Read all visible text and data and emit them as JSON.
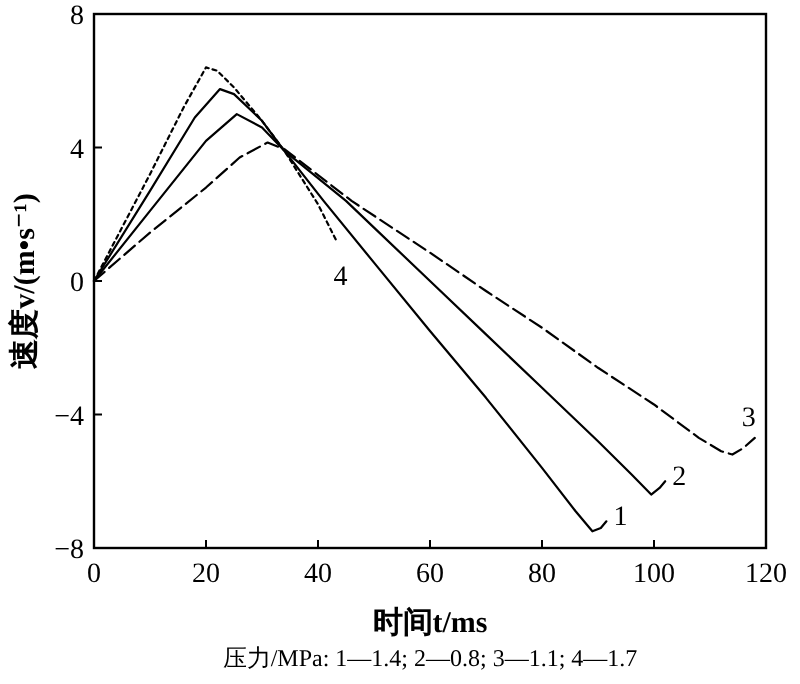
{
  "chart_data": {
    "type": "line",
    "xlabel": "时间t/ms",
    "ylabel": "速度v/(m•s⁻¹)",
    "xlim": [
      0,
      120
    ],
    "xticks": [
      0,
      20,
      40,
      60,
      80,
      100,
      120
    ],
    "ylim": [
      -8,
      8
    ],
    "yticks": [
      -8,
      -4,
      0,
      4,
      8
    ],
    "grid": false,
    "legend": false,
    "series": [
      {
        "name": "1",
        "color": "#000000",
        "line_style": "solid",
        "x": [
          0,
          10,
          18,
          22.5,
          25,
          30,
          34,
          41,
          50,
          60,
          70,
          80,
          86,
          89,
          90.5,
          91.5
        ],
        "values": [
          0,
          2.7,
          4.9,
          5.75,
          5.6,
          4.8,
          3.9,
          2.4,
          0.55,
          -1.5,
          -3.5,
          -5.6,
          -6.9,
          -7.5,
          -7.4,
          -7.2
        ]
      },
      {
        "name": "2",
        "color": "#000000",
        "line_style": "solid",
        "x": [
          0,
          10,
          20,
          25.5,
          30,
          34,
          45,
          50,
          60,
          70,
          80,
          90,
          96,
          99.5,
          101,
          102
        ],
        "values": [
          0,
          2.1,
          4.2,
          5.0,
          4.6,
          3.9,
          2.4,
          1.6,
          0.0,
          -1.6,
          -3.2,
          -4.8,
          -5.8,
          -6.4,
          -6.2,
          -6.0
        ]
      },
      {
        "name": "3",
        "color": "#000000",
        "line_style": "dashed",
        "x": [
          0,
          10,
          20,
          26,
          31,
          34,
          46,
          60,
          70,
          80,
          90,
          100,
          108,
          112,
          114,
          116,
          118
        ],
        "values": [
          0,
          1.45,
          2.8,
          3.7,
          4.15,
          3.95,
          2.4,
          0.85,
          -0.3,
          -1.4,
          -2.6,
          -3.7,
          -4.7,
          -5.1,
          -5.2,
          -5.0,
          -4.7
        ]
      },
      {
        "name": "4",
        "color": "#000000",
        "line_style": "dotted",
        "x": [
          0,
          10,
          16,
          20,
          22,
          25,
          30,
          34,
          40,
          43.3
        ],
        "values": [
          0,
          3.2,
          5.2,
          6.4,
          6.3,
          5.8,
          4.8,
          3.9,
          2.3,
          1.2
        ]
      }
    ],
    "annotations": [
      "压力/MPa: 1—1.4; 2—0.8; 3—1.1; 4—1.7"
    ]
  }
}
